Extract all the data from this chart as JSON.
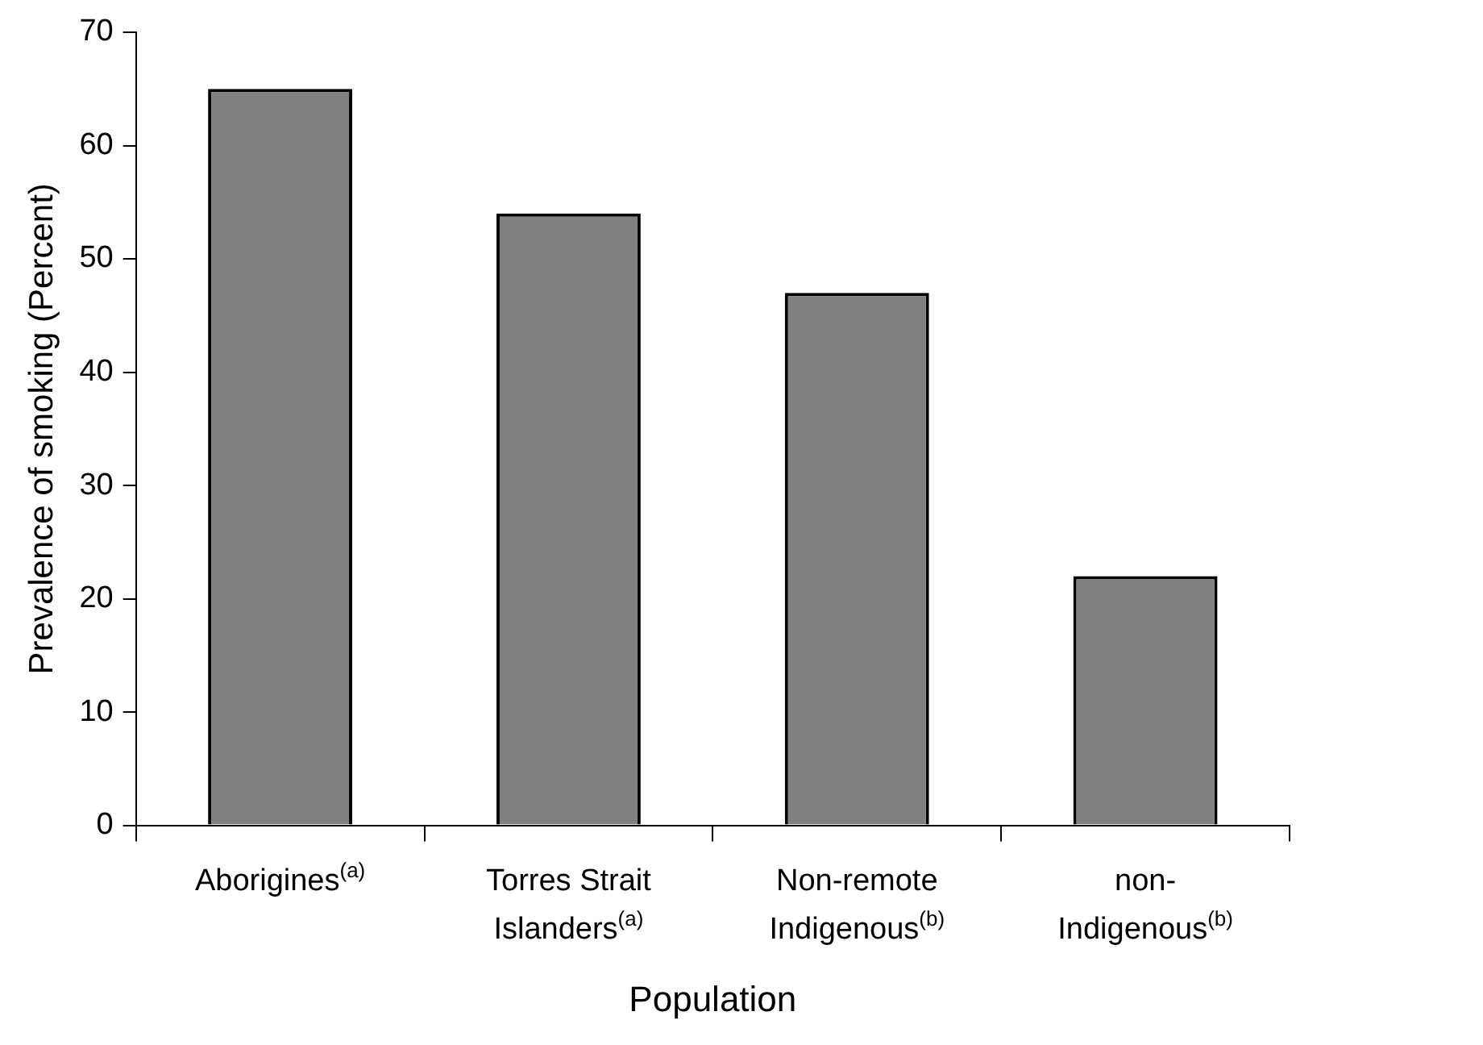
{
  "chart_data": {
    "type": "bar",
    "xlabel": "Population",
    "ylabel": "Prevalence of smoking (Percent)",
    "categories": [
      "Aborigines$^{(a)}$",
      "Torres Strait\nIslanders$^{(a)}$",
      "Non-remote\nIndigenous$^{(b)}$",
      "non-\nIndigenous$^{(b)}$"
    ],
    "values": [
      65,
      54,
      47,
      22
    ],
    "color": "#808080",
    "ylim": [
      0,
      70
    ],
    "yticks": [
      0,
      10,
      20,
      30,
      40,
      50,
      60,
      70
    ],
    "grid": false,
    "legend": false
  }
}
